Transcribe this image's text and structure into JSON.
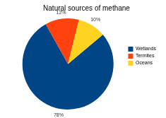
{
  "chart_data": {
    "type": "pie",
    "title": "Natural sources of methane",
    "categories": [
      "Wetlands",
      "Termites",
      "Oceans"
    ],
    "values": [
      78,
      12,
      10
    ],
    "value_labels": [
      "78%",
      "12%",
      "10%"
    ],
    "colors": [
      "#004586",
      "#ff420e",
      "#ffd320"
    ],
    "legend": "right",
    "data_labels": true
  }
}
